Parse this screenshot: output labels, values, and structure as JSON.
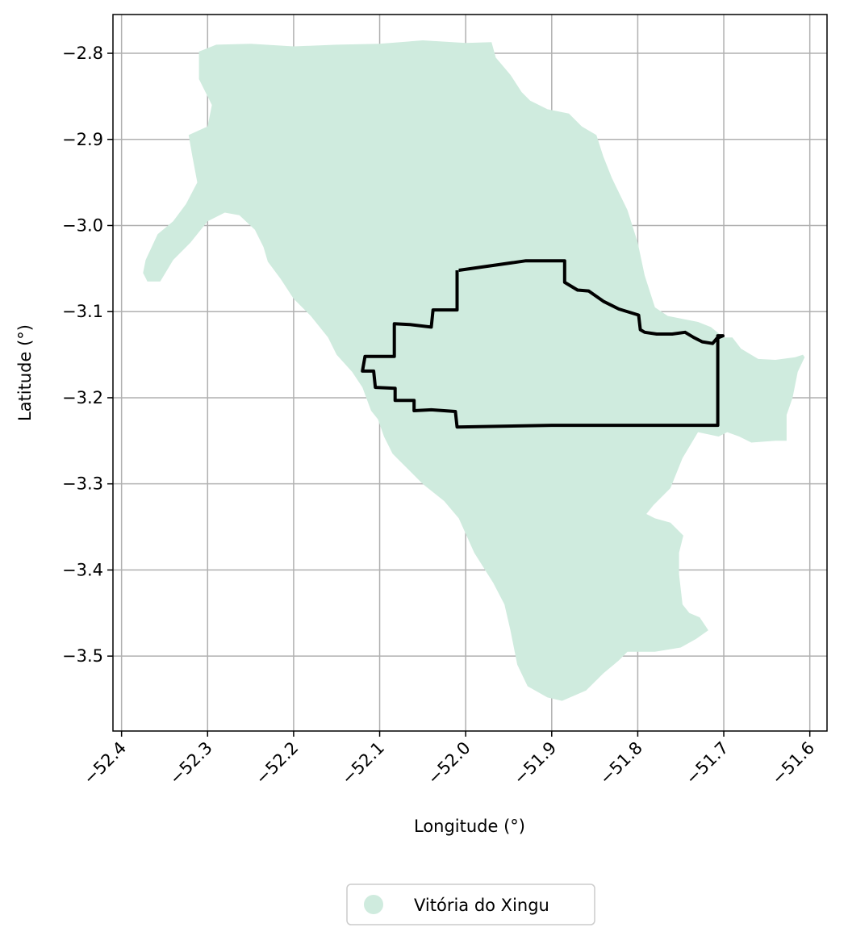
{
  "chart_data": {
    "type": "map",
    "xlabel": "Longitude (°)",
    "ylabel": "Latitude (°)",
    "xlim": [
      -52.41,
      -51.58
    ],
    "ylim": [
      -3.587,
      -2.755
    ],
    "grid": true,
    "legend_placement": "bottom-center",
    "x_ticks": [
      {
        "value": -52.4,
        "label": "−52.4"
      },
      {
        "value": -52.3,
        "label": "−52.3"
      },
      {
        "value": -52.2,
        "label": "−52.2"
      },
      {
        "value": -52.1,
        "label": "−52.1"
      },
      {
        "value": -52.0,
        "label": "−52.0"
      },
      {
        "value": -51.9,
        "label": "−51.9"
      },
      {
        "value": -51.8,
        "label": "−51.8"
      },
      {
        "value": -51.7,
        "label": "−51.7"
      },
      {
        "value": -51.6,
        "label": "−51.6"
      }
    ],
    "y_ticks": [
      {
        "value": -2.8,
        "label": "−2.8"
      },
      {
        "value": -2.9,
        "label": "−2.9"
      },
      {
        "value": -3.0,
        "label": "−3.0"
      },
      {
        "value": -3.1,
        "label": "−3.1"
      },
      {
        "value": -3.2,
        "label": "−3.2"
      },
      {
        "value": -3.3,
        "label": "−3.3"
      },
      {
        "value": -3.4,
        "label": "−3.4"
      },
      {
        "value": -3.5,
        "label": "−3.5"
      }
    ],
    "municipality": {
      "name": "Vitória do Xingu",
      "color": "#cfebde",
      "outline": [
        [
          -52.31,
          -2.798
        ],
        [
          -52.29,
          -2.79
        ],
        [
          -52.25,
          -2.789
        ],
        [
          -52.2,
          -2.792
        ],
        [
          -52.15,
          -2.79
        ],
        [
          -52.1,
          -2.789
        ],
        [
          -52.05,
          -2.785
        ],
        [
          -52.0,
          -2.788
        ],
        [
          -51.97,
          -2.787
        ],
        [
          -51.965,
          -2.805
        ],
        [
          -51.948,
          -2.825
        ],
        [
          -51.935,
          -2.845
        ],
        [
          -51.925,
          -2.855
        ],
        [
          -51.905,
          -2.865
        ],
        [
          -51.88,
          -2.87
        ],
        [
          -51.865,
          -2.885
        ],
        [
          -51.848,
          -2.895
        ],
        [
          -51.84,
          -2.92
        ],
        [
          -51.83,
          -2.945
        ],
        [
          -51.812,
          -2.982
        ],
        [
          -51.8,
          -3.02
        ],
        [
          -51.792,
          -3.058
        ],
        [
          -51.78,
          -3.095
        ],
        [
          -51.765,
          -3.105
        ],
        [
          -51.73,
          -3.112
        ],
        [
          -51.715,
          -3.118
        ],
        [
          -51.7,
          -3.13
        ],
        [
          -51.69,
          -3.13
        ],
        [
          -51.68,
          -3.143
        ],
        [
          -51.66,
          -3.155
        ],
        [
          -51.64,
          -3.156
        ],
        [
          -51.617,
          -3.153
        ],
        [
          -51.608,
          -3.15
        ],
        [
          -51.606,
          -3.153
        ],
        [
          -51.614,
          -3.17
        ],
        [
          -51.62,
          -3.2
        ],
        [
          -51.627,
          -3.22
        ],
        [
          -51.627,
          -3.25
        ],
        [
          -51.64,
          -3.25
        ],
        [
          -51.668,
          -3.252
        ],
        [
          -51.682,
          -3.245
        ],
        [
          -51.696,
          -3.24
        ],
        [
          -51.706,
          -3.245
        ],
        [
          -51.73,
          -3.24
        ],
        [
          -51.748,
          -3.27
        ],
        [
          -51.762,
          -3.305
        ],
        [
          -51.782,
          -3.325
        ],
        [
          -51.79,
          -3.335
        ],
        [
          -51.78,
          -3.34
        ],
        [
          -51.762,
          -3.345
        ],
        [
          -51.747,
          -3.36
        ],
        [
          -51.752,
          -3.38
        ],
        [
          -51.752,
          -3.405
        ],
        [
          -51.748,
          -3.44
        ],
        [
          -51.74,
          -3.45
        ],
        [
          -51.728,
          -3.455
        ],
        [
          -51.718,
          -3.47
        ],
        [
          -51.732,
          -3.48
        ],
        [
          -51.75,
          -3.49
        ],
        [
          -51.78,
          -3.495
        ],
        [
          -51.812,
          -3.495
        ],
        [
          -51.822,
          -3.505
        ],
        [
          -51.84,
          -3.52
        ],
        [
          -51.86,
          -3.54
        ],
        [
          -51.888,
          -3.552
        ],
        [
          -51.905,
          -3.548
        ],
        [
          -51.928,
          -3.535
        ],
        [
          -51.94,
          -3.51
        ],
        [
          -51.948,
          -3.47
        ],
        [
          -51.955,
          -3.44
        ],
        [
          -51.968,
          -3.415
        ],
        [
          -51.99,
          -3.38
        ],
        [
          -52.008,
          -3.34
        ],
        [
          -52.025,
          -3.32
        ],
        [
          -52.05,
          -3.3
        ],
        [
          -52.075,
          -3.275
        ],
        [
          -52.085,
          -3.265
        ],
        [
          -52.095,
          -3.245
        ],
        [
          -52.102,
          -3.225
        ],
        [
          -52.11,
          -3.215
        ],
        [
          -52.12,
          -3.188
        ],
        [
          -52.132,
          -3.17
        ],
        [
          -52.15,
          -3.15
        ],
        [
          -52.16,
          -3.13
        ],
        [
          -52.18,
          -3.105
        ],
        [
          -52.2,
          -3.085
        ],
        [
          -52.215,
          -3.062
        ],
        [
          -52.23,
          -3.042
        ],
        [
          -52.235,
          -3.025
        ],
        [
          -52.245,
          -3.005
        ],
        [
          -52.263,
          -2.988
        ],
        [
          -52.28,
          -2.985
        ],
        [
          -52.3,
          -2.995
        ],
        [
          -52.32,
          -3.02
        ],
        [
          -52.34,
          -3.04
        ],
        [
          -52.355,
          -3.065
        ],
        [
          -52.37,
          -3.065
        ],
        [
          -52.375,
          -3.055
        ],
        [
          -52.372,
          -3.04
        ],
        [
          -52.358,
          -3.01
        ],
        [
          -52.34,
          -2.995
        ],
        [
          -52.325,
          -2.975
        ],
        [
          -52.312,
          -2.95
        ],
        [
          -52.318,
          -2.918
        ],
        [
          -52.322,
          -2.895
        ],
        [
          -52.3,
          -2.885
        ],
        [
          -52.295,
          -2.86
        ],
        [
          -52.31,
          -2.83
        ]
      ]
    },
    "boundary": {
      "color": "#000000",
      "path": [
        [
          -52.008,
          -3.052
        ],
        [
          -51.93,
          -3.041
        ],
        [
          -51.885,
          -3.041
        ],
        [
          -51.885,
          -3.066
        ],
        [
          -51.87,
          -3.075
        ],
        [
          -51.857,
          -3.076
        ],
        [
          -51.84,
          -3.088
        ],
        [
          -51.822,
          -3.097
        ],
        [
          -51.799,
          -3.104
        ],
        [
          -51.797,
          -3.121
        ],
        [
          -51.792,
          -3.124
        ],
        [
          -51.778,
          -3.126
        ],
        [
          -51.76,
          -3.126
        ],
        [
          -51.745,
          -3.124
        ],
        [
          -51.735,
          -3.13
        ],
        [
          -51.725,
          -3.135
        ],
        [
          -51.713,
          -3.137
        ],
        [
          -51.708,
          -3.131
        ],
        [
          -51.701,
          -3.128
        ],
        [
          -51.707,
          -3.128
        ],
        [
          -51.707,
          -3.232
        ],
        [
          -51.8,
          -3.232
        ],
        [
          -51.9,
          -3.232
        ],
        [
          -52.01,
          -3.234
        ],
        [
          -52.012,
          -3.216
        ],
        [
          -52.04,
          -3.214
        ],
        [
          -52.06,
          -3.215
        ],
        [
          -52.06,
          -3.203
        ],
        [
          -52.082,
          -3.203
        ],
        [
          -52.082,
          -3.189
        ],
        [
          -52.105,
          -3.188
        ],
        [
          -52.107,
          -3.169
        ],
        [
          -52.12,
          -3.169
        ],
        [
          -52.117,
          -3.152
        ],
        [
          -52.083,
          -3.152
        ],
        [
          -52.083,
          -3.114
        ],
        [
          -52.065,
          -3.115
        ],
        [
          -52.04,
          -3.118
        ],
        [
          -52.038,
          -3.098
        ],
        [
          -52.01,
          -3.098
        ],
        [
          -52.01,
          -3.052
        ]
      ]
    }
  },
  "legend": {
    "entries": [
      {
        "label": "Vitória do Xingu",
        "color": "#cfebde"
      }
    ]
  }
}
